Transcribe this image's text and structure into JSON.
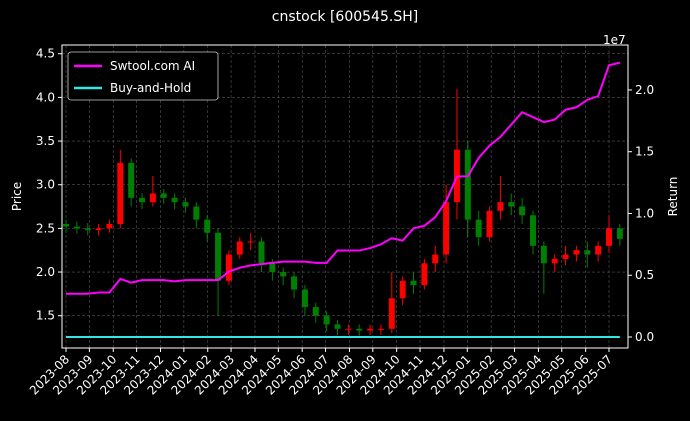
{
  "chart_data": {
    "type": "candlestick",
    "title": "cnstock [600545.SH]",
    "ylabel": "Price",
    "y2label": "Return",
    "y2_offset_label": "1e7",
    "x": [
      0,
      2,
      4,
      6,
      8,
      10,
      12,
      14,
      16,
      18,
      20,
      22,
      24,
      26,
      28,
      30,
      32,
      34,
      36,
      38,
      40,
      42,
      44,
      46,
      48,
      50,
      52,
      54,
      56,
      58,
      60,
      62,
      64,
      66,
      68,
      70,
      72,
      74,
      76,
      78,
      80,
      82,
      84,
      86,
      88,
      90,
      92,
      94,
      96,
      98,
      100,
      102
    ],
    "open": [
      2.55,
      2.52,
      2.5,
      2.48,
      2.5,
      2.55,
      3.25,
      2.85,
      2.8,
      2.9,
      2.85,
      2.8,
      2.75,
      2.6,
      2.45,
      1.9,
      2.2,
      2.35,
      2.35,
      2.1,
      2.0,
      1.95,
      1.8,
      1.6,
      1.5,
      1.4,
      1.35,
      1.35,
      1.33,
      1.35,
      1.35,
      1.7,
      1.9,
      1.85,
      2.1,
      2.2,
      2.8,
      3.4,
      2.6,
      2.4,
      2.7,
      2.8,
      2.75,
      2.65,
      2.3,
      2.1,
      2.15,
      2.2,
      2.25,
      2.2,
      2.3,
      2.5
    ],
    "high": [
      2.6,
      2.58,
      2.56,
      2.55,
      2.6,
      3.4,
      3.3,
      2.9,
      3.1,
      2.95,
      2.9,
      2.85,
      2.8,
      2.65,
      2.5,
      2.25,
      2.4,
      2.45,
      2.4,
      2.15,
      2.05,
      2.0,
      1.85,
      1.65,
      1.55,
      1.45,
      1.4,
      1.4,
      1.4,
      1.4,
      2.0,
      1.95,
      2.0,
      2.15,
      2.3,
      3.0,
      4.1,
      3.5,
      2.7,
      2.75,
      3.1,
      2.9,
      2.85,
      2.7,
      2.35,
      2.2,
      2.3,
      2.3,
      2.35,
      2.35,
      2.65,
      2.55
    ],
    "low": [
      2.45,
      2.44,
      2.42,
      2.42,
      2.45,
      2.5,
      2.75,
      2.72,
      2.75,
      2.78,
      2.72,
      2.68,
      2.5,
      2.35,
      1.5,
      1.85,
      2.15,
      2.25,
      2.0,
      1.9,
      1.85,
      1.7,
      1.5,
      1.42,
      1.32,
      1.28,
      1.28,
      1.27,
      1.28,
      1.28,
      1.3,
      1.62,
      1.75,
      1.8,
      2.0,
      2.1,
      2.6,
      2.4,
      2.3,
      2.35,
      2.6,
      2.65,
      2.55,
      2.2,
      1.75,
      2.0,
      2.08,
      2.12,
      2.05,
      2.12,
      2.22,
      2.3
    ],
    "close": [
      2.52,
      2.5,
      2.48,
      2.5,
      2.55,
      3.25,
      2.85,
      2.8,
      2.9,
      2.85,
      2.8,
      2.75,
      2.6,
      2.45,
      1.9,
      2.2,
      2.35,
      2.35,
      2.1,
      2.0,
      1.95,
      1.8,
      1.6,
      1.5,
      1.4,
      1.35,
      1.35,
      1.33,
      1.35,
      1.35,
      1.7,
      1.9,
      1.85,
      2.1,
      2.2,
      2.8,
      3.4,
      2.6,
      2.4,
      2.7,
      2.8,
      2.75,
      2.65,
      2.3,
      2.1,
      2.15,
      2.2,
      2.25,
      2.2,
      2.3,
      2.5,
      2.38
    ],
    "up_color": "#ff0000",
    "down_color": "#008000",
    "series": [
      {
        "name": "Swtool.com AI",
        "color": "#ff00ff",
        "axis": "y2",
        "values": [
          0.35,
          0.35,
          0.35,
          0.36,
          0.36,
          0.47,
          0.44,
          0.46,
          0.46,
          0.46,
          0.45,
          0.46,
          0.46,
          0.46,
          0.46,
          0.53,
          0.56,
          0.58,
          0.59,
          0.6,
          0.61,
          0.61,
          0.61,
          0.6,
          0.6,
          0.7,
          0.7,
          0.7,
          0.72,
          0.75,
          0.8,
          0.78,
          0.88,
          0.9,
          0.97,
          1.1,
          1.3,
          1.3,
          1.45,
          1.55,
          1.62,
          1.72,
          1.82,
          1.78,
          1.74,
          1.76,
          1.84,
          1.86,
          1.92,
          1.95,
          2.2,
          2.22
        ]
      },
      {
        "name": "Buy-and-Hold",
        "color": "#33e6e6",
        "axis": "y2",
        "values": [
          0,
          0,
          0,
          0,
          0,
          0,
          0,
          0,
          0,
          0,
          0,
          0,
          0,
          0,
          0,
          0,
          0,
          0,
          0,
          0,
          0,
          0,
          0,
          0,
          0,
          0,
          0,
          0,
          0,
          0,
          0,
          0,
          0,
          0,
          0,
          0,
          0,
          0,
          0,
          0,
          0,
          0,
          0,
          0,
          0,
          0,
          0,
          0,
          0,
          0,
          0,
          0
        ]
      }
    ],
    "xlim": [
      -0.74,
      103.5
    ],
    "xticks": [
      {
        "value": 0,
        "label": "2023-08"
      },
      {
        "value": 4.3,
        "label": "2023-09"
      },
      {
        "value": 8.7,
        "label": "2023-10"
      },
      {
        "value": 13.0,
        "label": "2023-11"
      },
      {
        "value": 17.4,
        "label": "2023-12"
      },
      {
        "value": 21.7,
        "label": "2024-01"
      },
      {
        "value": 26.1,
        "label": "2024-02"
      },
      {
        "value": 30.4,
        "label": "2024-03"
      },
      {
        "value": 34.8,
        "label": "2024-04"
      },
      {
        "value": 39.1,
        "label": "2024-05"
      },
      {
        "value": 43.5,
        "label": "2024-06"
      },
      {
        "value": 47.8,
        "label": "2024-07"
      },
      {
        "value": 52.2,
        "label": "2024-08"
      },
      {
        "value": 56.5,
        "label": "2024-09"
      },
      {
        "value": 60.9,
        "label": "2024-10"
      },
      {
        "value": 65.2,
        "label": "2024-11"
      },
      {
        "value": 69.6,
        "label": "2024-12"
      },
      {
        "value": 73.9,
        "label": "2025-01"
      },
      {
        "value": 78.3,
        "label": "2025-02"
      },
      {
        "value": 82.6,
        "label": "2025-03"
      },
      {
        "value": 87.0,
        "label": "2025-04"
      },
      {
        "value": 91.3,
        "label": "2025-05"
      },
      {
        "value": 95.7,
        "label": "2025-06"
      },
      {
        "value": 100.0,
        "label": "2025-07"
      }
    ],
    "ylim": [
      1.13,
      4.6
    ],
    "yticks": [
      1.5,
      {
        "value": 2.0,
        "label": "2.0"
      },
      2.5,
      {
        "value": 3.0,
        "label": "3.0"
      },
      3.5,
      {
        "value": 4.0,
        "label": "4.0"
      },
      4.5
    ],
    "y2lim": [
      -0.089,
      2.364
    ],
    "y2ticks": [
      {
        "value": 0,
        "label": "0.0"
      },
      0.5,
      {
        "value": 1.0,
        "label": "1.0"
      },
      1.5,
      {
        "value": 2.0,
        "label": "2.0"
      }
    ],
    "grid": true,
    "legend": "upper left"
  }
}
